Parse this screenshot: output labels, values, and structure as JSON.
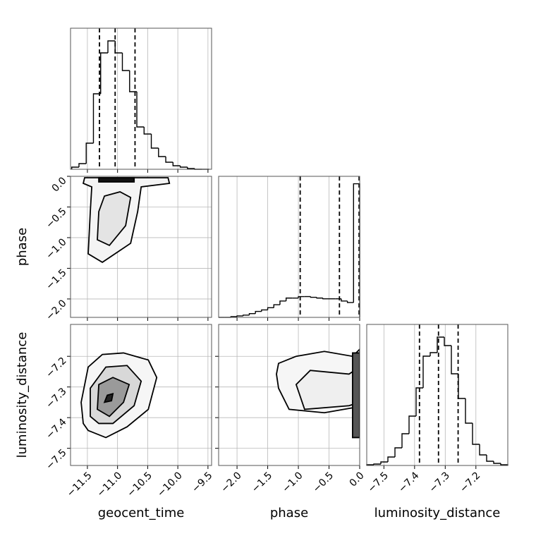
{
  "chart_data": {
    "type": "corner",
    "parameters": [
      {
        "name": "geocent_time",
        "lim": [
          -11.78,
          -9.44
        ],
        "ticks": [
          {
            "value": -11.5,
            "label": "−11.5"
          },
          {
            "value": -11.0,
            "label": "−11.0"
          },
          {
            "value": -10.5,
            "label": "−10.5"
          },
          {
            "value": -10.0,
            "label": "−10.0"
          },
          {
            "value": -9.5,
            "label": "−9.5"
          }
        ]
      },
      {
        "name": "phase",
        "lim": [
          -2.3,
          0.0
        ],
        "ticks": [
          {
            "value": -2.0,
            "label": "−2.0"
          },
          {
            "value": -1.5,
            "label": "−1.5"
          },
          {
            "value": -1.0,
            "label": "−1.0"
          },
          {
            "value": -0.5,
            "label": "−0.5"
          },
          {
            "value": 0.0,
            "label": "0.0"
          }
        ]
      },
      {
        "name": "luminosity_distance",
        "lim": [
          -7.556,
          -7.096
        ],
        "ticks": [
          {
            "value": -7.5,
            "label": "−7.5"
          },
          {
            "value": -7.4,
            "label": "−7.4"
          },
          {
            "value": -7.3,
            "label": "−7.3"
          },
          {
            "value": -7.2,
            "label": "−7.2"
          }
        ]
      }
    ],
    "histograms": [
      {
        "ylim": [
          0,
          200
        ],
        "bins": [
          -11.76,
          -11.64,
          -11.52,
          -11.4,
          -11.28,
          -11.16,
          -11.04,
          -10.92,
          -10.8,
          -10.68,
          -10.56,
          -10.44,
          -10.32,
          -10.2,
          -10.08,
          -9.96,
          -9.84,
          -9.72,
          -9.6,
          -9.48
        ],
        "counts": [
          3,
          8,
          37,
          107,
          165,
          182,
          165,
          140,
          110,
          60,
          50,
          30,
          18,
          10,
          5,
          3,
          1,
          0,
          0
        ],
        "quantiles": [
          -11.3,
          -11.04,
          -10.71
        ]
      },
      {
        "ylim": [
          0,
          190
        ],
        "bins": [
          -2.3,
          -2.2,
          -2.1,
          -2.0,
          -1.9,
          -1.8,
          -1.7,
          -1.6,
          -1.5,
          -1.4,
          -1.3,
          -1.2,
          -1.1,
          -1.0,
          -0.9,
          -0.8,
          -0.7,
          -0.6,
          -0.5,
          -0.4,
          -0.3,
          -0.2,
          -0.1,
          0.0
        ],
        "counts": [
          0,
          0,
          1,
          2,
          3,
          5,
          8,
          10,
          13,
          17,
          22,
          26,
          26,
          28,
          28,
          27,
          26,
          25,
          25,
          25,
          22,
          20,
          180
        ],
        "quantiles": [
          -0.97,
          -0.33,
          -0.01
        ]
      },
      {
        "ylim": [
          0,
          200
        ],
        "bins": [
          -7.556,
          -7.533,
          -7.51,
          -7.487,
          -7.464,
          -7.441,
          -7.418,
          -7.395,
          -7.372,
          -7.349,
          -7.326,
          -7.303,
          -7.28,
          -7.257,
          -7.234,
          -7.211,
          -7.188,
          -7.165,
          -7.142,
          -7.119,
          -7.096
        ],
        "counts": [
          1,
          2,
          5,
          12,
          25,
          45,
          70,
          110,
          155,
          160,
          182,
          170,
          130,
          95,
          60,
          30,
          15,
          6,
          3,
          1
        ],
        "quantiles": [
          -7.384,
          -7.322,
          -7.258
        ]
      }
    ],
    "contours": [
      {
        "xparam": 0,
        "yparam": 1,
        "fills": [
          "#f4f4f4",
          "#e4e4e4",
          "#111111"
        ],
        "levels": [
          {
            "x": [
              -11.546,
              -11.569,
              -11.428,
              -11.452,
              -11.487,
              -11.252,
              -10.783,
              -10.666,
              -10.608,
              -10.139,
              -10.162
            ],
            "y": [
              -0.023,
              -0.115,
              -0.172,
              -0.575,
              -1.264,
              -1.402,
              -1.092,
              -0.575,
              -0.172,
              -0.115,
              -0.023
            ]
          },
          {
            "x": [
              -11.311,
              -11.335,
              -11.135,
              -10.866,
              -10.783,
              -10.959,
              -11.217
            ],
            "y": [
              -0.575,
              -1.034,
              -1.126,
              -0.805,
              -0.345,
              -0.253,
              -0.322
            ]
          },
          {
            "x": [
              -11.311,
              -11.311,
              -10.725,
              -10.725
            ],
            "y": [
              -0.023,
              -0.092,
              -0.092,
              -0.023
            ]
          }
        ]
      },
      {
        "xparam": 0,
        "yparam": 2,
        "fills": [
          "#f6f6f6",
          "#d8d8d8",
          "#9a9a9a",
          "#222222"
        ],
        "levels": [
          {
            "x": [
              -11.569,
              -11.604,
              -11.487,
              -11.252,
              -10.901,
              -10.49,
              -10.35,
              -10.49,
              -10.842,
              -11.194,
              -11.487
            ],
            "y": [
              -7.419,
              -7.35,
              -7.235,
              -7.194,
              -7.189,
              -7.212,
              -7.269,
              -7.373,
              -7.43,
              -7.465,
              -7.442
            ]
          },
          {
            "x": [
              -11.452,
              -11.452,
              -11.194,
              -10.842,
              -10.608,
              -10.725,
              -11.077,
              -11.311
            ],
            "y": [
              -7.396,
              -7.304,
              -7.235,
              -7.23,
              -7.281,
              -7.361,
              -7.419,
              -7.419
            ]
          },
          {
            "x": [
              -11.335,
              -11.311,
              -11.077,
              -10.807,
              -10.901,
              -11.135
            ],
            "y": [
              -7.373,
              -7.292,
              -7.269,
              -7.292,
              -7.35,
              -7.396
            ]
          },
          {
            "x": [
              -11.217,
              -11.17,
              -11.077,
              -11.1
            ],
            "y": [
              -7.35,
              -7.327,
              -7.322,
              -7.345
            ]
          }
        ]
      },
      {
        "xparam": 1,
        "yparam": 2,
        "fills": [
          "#f6f6f6",
          "#efefef",
          "#555555"
        ],
        "levels": [
          {
            "x": [
              -1.357,
              -1.323,
              -1.151,
              -0.576,
              -0.116,
              0.0,
              0.0,
              -0.116,
              -0.576,
              -1.036,
              -1.323
            ],
            "y": [
              -7.258,
              -7.304,
              -7.373,
              -7.384,
              -7.368,
              -7.419,
              -7.177,
              -7.2,
              -7.184,
              -7.2,
              -7.223
            ]
          },
          {
            "x": [
              -1.036,
              -0.898,
              -0.174,
              0.0,
              0.0,
              -0.174,
              -0.806
            ],
            "y": [
              -7.292,
              -7.373,
              -7.361,
              -7.35,
              -7.235,
              -7.258,
              -7.246
            ]
          },
          {
            "x": [
              -0.116,
              -0.116,
              0.0,
              0.0
            ],
            "y": [
              -7.189,
              -7.465,
              -7.465,
              -7.189
            ]
          }
        ]
      }
    ]
  }
}
